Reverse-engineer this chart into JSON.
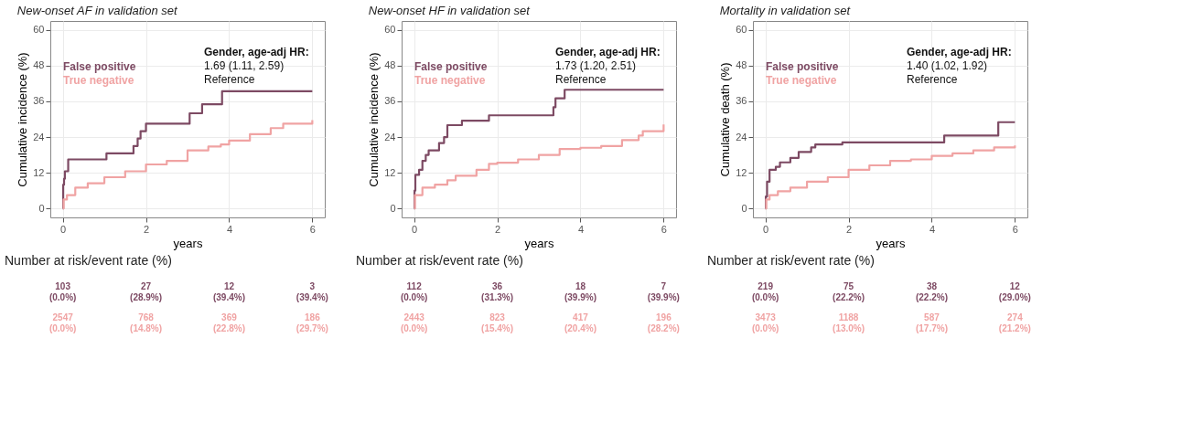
{
  "chart_data": [
    {
      "type": "step",
      "title": "New-onset AF in validation set",
      "xlabel": "years",
      "ylabel": "Cumulative incidence (%)",
      "xlim": [
        -0.3,
        6.3
      ],
      "ylim": [
        -3,
        63
      ],
      "xticks": [
        0,
        2,
        4,
        6
      ],
      "yticks": [
        0,
        12,
        24,
        36,
        48,
        60
      ],
      "grid": true,
      "legend": "top left",
      "series": [
        {
          "name": "False positive",
          "color": "#7d4a63",
          "x": [
            0,
            0.01,
            0.03,
            0.05,
            0.13,
            1.05,
            1.7,
            1.8,
            1.87,
            2.0,
            3.05,
            3.35,
            3.83,
            6
          ],
          "values": [
            0,
            8,
            10,
            12.5,
            16.5,
            18.5,
            21,
            23.5,
            26,
            28.5,
            32,
            35,
            39.4,
            39.4
          ]
        },
        {
          "name": "True negative",
          "color": "#f0a3a3",
          "x": [
            0,
            0.02,
            0.1,
            0.3,
            0.6,
            1,
            1.5,
            2,
            2.5,
            3,
            3.5,
            3.8,
            4,
            4.5,
            5,
            5.3,
            6
          ],
          "values": [
            0,
            3,
            4.5,
            7,
            8.5,
            10.5,
            12.5,
            14.8,
            16,
            19.5,
            20.8,
            21.5,
            22.8,
            25,
            27,
            28.5,
            29.7
          ]
        }
      ],
      "annotations": [
        "Gender, age-adj HR:",
        "1.69 (1.11, 2.59)",
        "Reference",
        "Number at risk/event rate (%)",
        "103",
        "27",
        "12",
        "3",
        "(0.0%)",
        "(28.9%)",
        "(39.4%)",
        "(39.4%)",
        "2547",
        "768",
        "369",
        "186",
        "(0.0%)",
        "(14.8%)",
        "(22.8%)",
        "(29.7%)"
      ]
    },
    {
      "type": "step",
      "title": "New-onset HF in validation set",
      "xlabel": "years",
      "ylabel": "Cumulative incidence (%)",
      "xlim": [
        -0.3,
        6.3
      ],
      "ylim": [
        -3,
        63
      ],
      "xticks": [
        0,
        2,
        4,
        6
      ],
      "yticks": [
        0,
        12,
        24,
        36,
        48,
        60
      ],
      "grid": true,
      "legend": "top left",
      "series": [
        {
          "name": "False positive",
          "color": "#7d4a63",
          "x": [
            0,
            0.01,
            0.03,
            0.12,
            0.2,
            0.28,
            0.35,
            0.6,
            0.72,
            0.8,
            1.15,
            1.8,
            3.35,
            3.4,
            3.62,
            6
          ],
          "values": [
            0,
            6,
            11.3,
            13,
            16,
            18,
            19.5,
            22,
            24,
            28,
            29.5,
            31.3,
            34,
            37,
            39.9,
            39.9
          ]
        },
        {
          "name": "True negative",
          "color": "#f0a3a3",
          "x": [
            0,
            0.02,
            0.2,
            0.5,
            0.8,
            1,
            1.5,
            1.8,
            2,
            2.5,
            3,
            3.5,
            4,
            4.5,
            5,
            5.4,
            5.5,
            6
          ],
          "values": [
            0,
            4.5,
            7,
            8,
            9.5,
            11,
            13,
            15,
            15.4,
            16.5,
            18,
            20,
            20.4,
            21,
            23,
            24.5,
            26,
            28.2
          ]
        }
      ],
      "annotations": [
        "Gender, age-adj HR:",
        "1.73 (1.20, 2.51)",
        "Reference",
        "Number at risk/event rate (%)",
        "112",
        "36",
        "18",
        "7",
        "(0.0%)",
        "(31.3%)",
        "(39.9%)",
        "(39.9%)",
        "2443",
        "823",
        "417",
        "196",
        "(0.0%)",
        "(15.4%)",
        "(20.4%)",
        "(28.2%)"
      ]
    },
    {
      "type": "step",
      "title": "Mortality in validation set",
      "xlabel": "years",
      "ylabel": "Cumulative death (%)",
      "xlim": [
        -0.3,
        6.3
      ],
      "ylim": [
        -3,
        63
      ],
      "xticks": [
        0,
        2,
        4,
        6
      ],
      "yticks": [
        0,
        12,
        24,
        36,
        48,
        60
      ],
      "grid": true,
      "legend": "top left",
      "series": [
        {
          "name": "False positive",
          "color": "#7d4a63",
          "x": [
            0,
            0.01,
            0.04,
            0.1,
            0.25,
            0.35,
            0.6,
            0.8,
            1.1,
            1.2,
            1.85,
            4.3,
            5.6,
            6
          ],
          "values": [
            0,
            4,
            9,
            13,
            14,
            15.5,
            17,
            19,
            20.5,
            21.5,
            22.2,
            24.5,
            29,
            29
          ]
        },
        {
          "name": "True negative",
          "color": "#f0a3a3",
          "x": [
            0,
            0.02,
            0.1,
            0.3,
            0.6,
            1,
            1.5,
            2,
            2.5,
            3,
            3.5,
            4,
            4.5,
            5,
            5.5,
            6
          ],
          "values": [
            0,
            3,
            4.5,
            5.8,
            7,
            9,
            10.5,
            13,
            14.5,
            16,
            16.5,
            17.7,
            18.5,
            19.5,
            20.5,
            21.2
          ]
        }
      ],
      "annotations": [
        "Gender, age-adj HR:",
        "1.40 (1.02, 1.92)",
        "Reference",
        "Number at risk/event rate (%)",
        "219",
        "75",
        "38",
        "12",
        "(0.0%)",
        "(22.2%)",
        "(22.2%)",
        "(29.0%)",
        "3473",
        "1188",
        "587",
        "274",
        "(0.0%)",
        "(13.0%)",
        "(17.7%)",
        "(21.2%)"
      ]
    }
  ]
}
